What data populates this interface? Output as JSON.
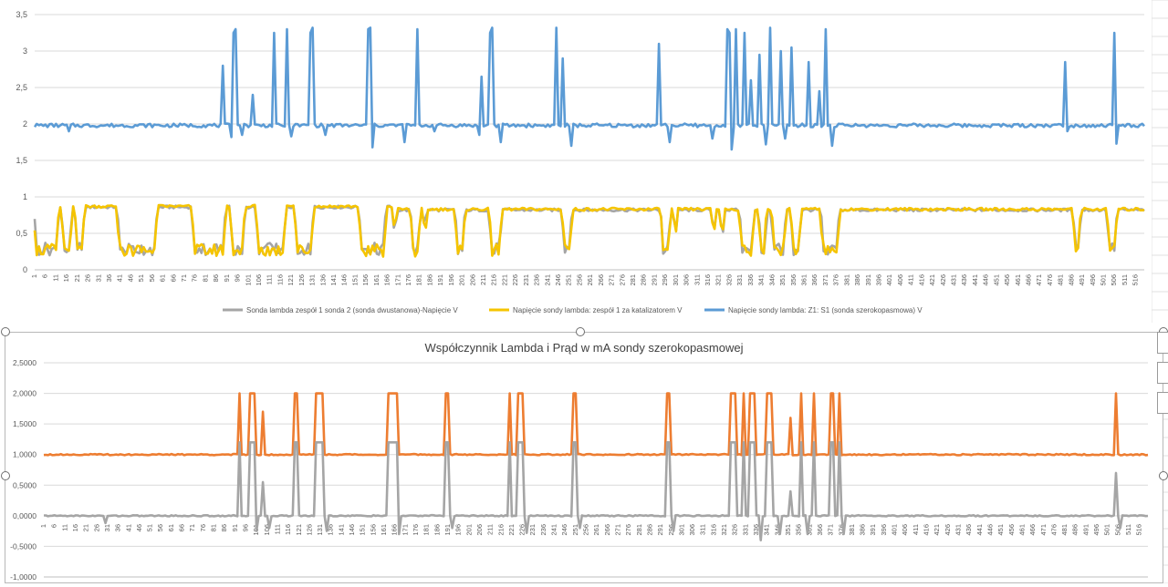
{
  "colors": {
    "gray": "#a5a5a5",
    "yellow": "#f5c400",
    "blue": "#5b9bd5",
    "orange": "#ed7d31",
    "grid": "#d9d9d9",
    "axis_text": "#595959"
  },
  "chart_data": [
    {
      "type": "line",
      "title": "",
      "x_start": 1,
      "x_end": 520,
      "ylim": [
        0,
        3.5
      ],
      "y_ticks": [
        "0",
        "0,5",
        "1",
        "1,5",
        "2",
        "2,5",
        "3",
        "3,5"
      ],
      "y_tick_values": [
        0,
        0.5,
        1,
        1.5,
        2,
        2.5,
        3,
        3.5
      ],
      "grid": true,
      "legend_position": "bottom",
      "series": [
        {
          "name": "Sonda lambda zespół 1 sonda 2 (sonda dwustanowa)-Napięcie V",
          "color_key": "gray",
          "baseline": 0.82,
          "low_windows": [
            [
              1,
              12
            ],
            [
              14,
              18
            ],
            [
              20,
              24
            ],
            [
              40,
              58
            ],
            [
              75,
              90
            ],
            [
              93,
              99
            ],
            [
              105,
              118
            ],
            [
              123,
              131
            ],
            [
              153,
              165
            ],
            [
              169,
              170
            ],
            [
              177,
              181
            ],
            [
              183,
              184
            ],
            [
              198,
              202
            ],
            [
              214,
              219
            ],
            [
              248,
              252
            ],
            [
              294,
              298
            ],
            [
              300,
              301
            ],
            [
              318,
              319
            ],
            [
              322,
              323
            ],
            [
              331,
              337
            ],
            [
              340,
              343
            ],
            [
              346,
              352
            ],
            [
              355,
              359
            ],
            [
              369,
              377
            ],
            [
              487,
              490
            ],
            [
              503,
              507
            ]
          ],
          "low_value": 0.2
        },
        {
          "name": "Napięcie sondy lambda: zespół 1 za katalizatorem V",
          "color_key": "yellow",
          "baseline": 0.83,
          "low_windows": [
            [
              1,
              12
            ],
            [
              14,
              18
            ],
            [
              20,
              24
            ],
            [
              40,
              58
            ],
            [
              75,
              90
            ],
            [
              93,
              99
            ],
            [
              105,
              118
            ],
            [
              123,
              131
            ],
            [
              153,
              165
            ],
            [
              169,
              170
            ],
            [
              177,
              181
            ],
            [
              183,
              184
            ],
            [
              198,
              202
            ],
            [
              214,
              219
            ],
            [
              248,
              252
            ],
            [
              294,
              298
            ],
            [
              300,
              301
            ],
            [
              318,
              319
            ],
            [
              322,
              323
            ],
            [
              331,
              337
            ],
            [
              340,
              343
            ],
            [
              346,
              352
            ],
            [
              355,
              359
            ],
            [
              369,
              377
            ],
            [
              487,
              490
            ],
            [
              503,
              507
            ]
          ],
          "low_value": 0.18
        },
        {
          "name": "Napięcie sondy lambda: Z1: S1 (sonda szerokopasmowa) V",
          "color_key": "blue",
          "baseline": 1.98,
          "spikes": [
            [
              89,
              2.8
            ],
            [
              94,
              3.25
            ],
            [
              95,
              3.3
            ],
            [
              103,
              2.4
            ],
            [
              113,
              3.25
            ],
            [
              119,
              3.3
            ],
            [
              130,
              3.25
            ],
            [
              131,
              3.32
            ],
            [
              157,
              3.3
            ],
            [
              158,
              3.32
            ],
            [
              180,
              3.3
            ],
            [
              210,
              2.65
            ],
            [
              214,
              3.25
            ],
            [
              215,
              3.32
            ],
            [
              245,
              3.32
            ],
            [
              248,
              2.9
            ],
            [
              293,
              3.1
            ],
            [
              325,
              3.3
            ],
            [
              326,
              3.25
            ],
            [
              329,
              3.3
            ],
            [
              333,
              3.25
            ],
            [
              336,
              2.6
            ],
            [
              340,
              2.95
            ],
            [
              345,
              3.32
            ],
            [
              350,
              3.0
            ],
            [
              355,
              3.05
            ],
            [
              363,
              2.85
            ],
            [
              368,
              2.45
            ],
            [
              371,
              3.3
            ],
            [
              483,
              2.85
            ],
            [
              506,
              3.25
            ]
          ],
          "dips": [
            [
              17,
              1.9
            ],
            [
              93,
              1.82
            ],
            [
              98,
              1.85
            ],
            [
              121,
              1.83
            ],
            [
              137,
              1.85
            ],
            [
              159,
              1.68
            ],
            [
              174,
              1.75
            ],
            [
              188,
              1.9
            ],
            [
              209,
              1.85
            ],
            [
              219,
              1.75
            ],
            [
              252,
              1.7
            ],
            [
              298,
              1.75
            ],
            [
              318,
              1.8
            ],
            [
              327,
              1.65
            ],
            [
              343,
              1.72
            ],
            [
              352,
              1.8
            ],
            [
              374,
              1.7
            ],
            [
              484,
              1.9
            ],
            [
              507,
              1.73
            ]
          ]
        }
      ],
      "x_tick_labels": [
        "1",
        "6",
        "11",
        "16",
        "21",
        "26",
        "31",
        "36",
        "41",
        "46",
        "51",
        "56",
        "61",
        "66",
        "71",
        "76",
        "81",
        "86",
        "91",
        "96",
        "101",
        "106",
        "111",
        "116",
        "121",
        "126",
        "131",
        "136",
        "141",
        "146",
        "151",
        "156",
        "161",
        "166",
        "171",
        "176",
        "181",
        "186",
        "191",
        "196",
        "201",
        "206",
        "211",
        "216",
        "221",
        "226",
        "231",
        "236",
        "241",
        "246",
        "251",
        "256",
        "261",
        "266",
        "271",
        "276",
        "281",
        "286",
        "291",
        "296",
        "301",
        "306",
        "311",
        "316",
        "321",
        "326",
        "331",
        "336",
        "341",
        "346",
        "351",
        "356",
        "361",
        "366",
        "371",
        "376",
        "381",
        "386",
        "391",
        "396",
        "401",
        "406",
        "411",
        "416",
        "421",
        "426",
        "431",
        "436",
        "441",
        "446",
        "451",
        "456",
        "461",
        "466",
        "471",
        "476",
        "481",
        "486",
        "491",
        "496",
        "501",
        "506",
        "511",
        "516"
      ]
    },
    {
      "type": "line",
      "title": "Współczynnik Lambda i Prąd w mA sondy szerokopasmowej",
      "x_start": 1,
      "x_end": 520,
      "ylim": [
        -1.0,
        2.5
      ],
      "y_ticks": [
        "2,5000",
        "2,0000",
        "1,5000",
        "1,0000",
        "0,5000",
        "0,0000",
        "-0,5000",
        "-1,0000"
      ],
      "y_tick_values": [
        2.5,
        2.0,
        1.5,
        1.0,
        0.5,
        0.0,
        -0.5,
        -1.0
      ],
      "grid": true,
      "series": [
        {
          "color_key": "orange",
          "baseline": 1.0,
          "spikes": [
            [
              93,
              2.0
            ],
            [
              98,
              2.0
            ],
            [
              99,
              2.0
            ],
            [
              100,
              2.0
            ],
            [
              104,
              1.7
            ],
            [
              119,
              2.0
            ],
            [
              120,
              2.0
            ],
            [
              129,
              2.0
            ],
            [
              130,
              2.0
            ],
            [
              131,
              2.0
            ],
            [
              132,
              2.0
            ],
            [
              163,
              2.0
            ],
            [
              164,
              2.0
            ],
            [
              165,
              2.0
            ],
            [
              166,
              2.0
            ],
            [
              167,
              2.0
            ],
            [
              190,
              2.0
            ],
            [
              191,
              2.0
            ],
            [
              220,
              2.0
            ],
            [
              224,
              2.0
            ],
            [
              225,
              2.0
            ],
            [
              226,
              2.0
            ],
            [
              250,
              2.0
            ],
            [
              251,
              2.0
            ],
            [
              294,
              2.0
            ],
            [
              295,
              2.0
            ],
            [
              324,
              2.0
            ],
            [
              326,
              2.0
            ],
            [
              330,
              2.0
            ],
            [
              333,
              2.0
            ],
            [
              335,
              2.0
            ],
            [
              341,
              2.0
            ],
            [
              343,
              2.0
            ],
            [
              352,
              1.6
            ],
            [
              357,
              2.0
            ],
            [
              363,
              2.0
            ],
            [
              371,
              2.0
            ],
            [
              372,
              2.0
            ],
            [
              375,
              2.0
            ],
            [
              505,
              2.0
            ]
          ]
        },
        {
          "color_key": "gray",
          "baseline": 0.0,
          "spikes": [
            [
              93,
              1.2
            ],
            [
              98,
              1.2
            ],
            [
              99,
              1.2
            ],
            [
              100,
              1.2
            ],
            [
              104,
              0.55
            ],
            [
              119,
              1.2
            ],
            [
              120,
              1.2
            ],
            [
              129,
              1.2
            ],
            [
              130,
              1.2
            ],
            [
              131,
              1.2
            ],
            [
              132,
              1.2
            ],
            [
              163,
              1.2
            ],
            [
              164,
              1.2
            ],
            [
              165,
              1.2
            ],
            [
              166,
              1.2
            ],
            [
              167,
              1.2
            ],
            [
              190,
              1.2
            ],
            [
              191,
              1.2
            ],
            [
              220,
              1.2
            ],
            [
              224,
              1.2
            ],
            [
              225,
              1.2
            ],
            [
              226,
              1.2
            ],
            [
              250,
              1.2
            ],
            [
              251,
              1.2
            ],
            [
              294,
              1.2
            ],
            [
              295,
              1.2
            ],
            [
              324,
              1.2
            ],
            [
              326,
              1.2
            ],
            [
              330,
              1.2
            ],
            [
              333,
              1.2
            ],
            [
              335,
              1.2
            ],
            [
              341,
              1.2
            ],
            [
              343,
              1.2
            ],
            [
              352,
              0.4
            ],
            [
              357,
              1.2
            ],
            [
              363,
              1.2
            ],
            [
              371,
              1.2
            ],
            [
              372,
              1.2
            ],
            [
              375,
              1.2
            ],
            [
              505,
              0.7
            ]
          ],
          "dips": [
            [
              30,
              -0.12
            ],
            [
              101,
              -0.25
            ],
            [
              107,
              -0.2
            ],
            [
              134,
              -0.25
            ],
            [
              168,
              -0.3
            ],
            [
              193,
              -0.2
            ],
            [
              228,
              -0.28
            ],
            [
              253,
              -0.2
            ],
            [
              297,
              -0.25
            ],
            [
              338,
              -0.4
            ],
            [
              347,
              -0.3
            ],
            [
              360,
              -0.3
            ],
            [
              377,
              -0.3
            ],
            [
              507,
              -0.2
            ]
          ]
        }
      ],
      "x_tick_labels": [
        "1",
        "6",
        "11",
        "16",
        "21",
        "26",
        "31",
        "36",
        "41",
        "46",
        "51",
        "56",
        "61",
        "66",
        "71",
        "76",
        "81",
        "86",
        "91",
        "96",
        "101",
        "106",
        "111",
        "116",
        "121",
        "126",
        "131",
        "136",
        "141",
        "146",
        "151",
        "156",
        "161",
        "166",
        "171",
        "176",
        "181",
        "186",
        "191",
        "196",
        "201",
        "206",
        "211",
        "216",
        "221",
        "226",
        "231",
        "236",
        "241",
        "246",
        "251",
        "256",
        "261",
        "266",
        "271",
        "276",
        "281",
        "286",
        "291",
        "296",
        "301",
        "306",
        "311",
        "316",
        "321",
        "326",
        "331",
        "336",
        "341",
        "346",
        "351",
        "356",
        "361",
        "366",
        "371",
        "376",
        "381",
        "386",
        "391",
        "396",
        "401",
        "406",
        "411",
        "416",
        "421",
        "426",
        "431",
        "436",
        "441",
        "446",
        "451",
        "456",
        "461",
        "466",
        "471",
        "476",
        "481",
        "486",
        "491",
        "496",
        "501",
        "506",
        "511",
        "516"
      ]
    }
  ]
}
